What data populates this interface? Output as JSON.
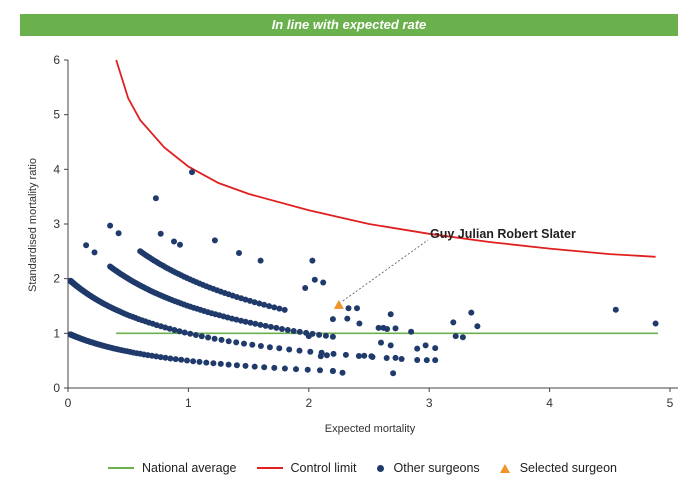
{
  "header": {
    "banner": "In line with expected rate"
  },
  "colors": {
    "banner": "#6ab04c",
    "national_average": "#6ab04c",
    "control_limit": "#e02020",
    "other_surgeons": "#1f3a6b",
    "selected_surgeon": "#f0932b"
  },
  "legend": {
    "national_average": "National average",
    "control_limit": "Control limit",
    "other_surgeons": "Other surgeons",
    "selected_surgeon": "Selected surgeon"
  },
  "chart_data": {
    "type": "scatter",
    "title": "",
    "xlabel": "Expected mortality",
    "ylabel": "Standardised mortality ratio",
    "xlim": [
      0,
      5
    ],
    "ylim": [
      0,
      6
    ],
    "x_ticks": [
      "0",
      "1",
      "2",
      "3",
      "4",
      "5"
    ],
    "y_ticks": [
      "0",
      "1",
      "2",
      "3",
      "4",
      "5",
      "6"
    ],
    "grid": false,
    "legend_position": "bottom",
    "national_average": {
      "name": "National average",
      "x": [
        0.4,
        4.9
      ],
      "y": 1
    },
    "control_limit": {
      "name": "Control limit",
      "x": [
        0.4,
        0.5,
        0.6,
        0.8,
        1.0,
        1.25,
        1.5,
        2.0,
        2.5,
        3.0,
        3.5,
        4.0,
        4.5,
        4.88
      ],
      "y": [
        6.0,
        5.3,
        4.9,
        4.4,
        4.05,
        3.75,
        3.55,
        3.25,
        3.0,
        2.82,
        2.67,
        2.55,
        2.45,
        2.4
      ]
    },
    "other_surgeons": {
      "name": "Other surgeons",
      "curves": [
        {
          "k": 1,
          "x_from": 0.02,
          "x_to": 2.2,
          "count": 95
        },
        {
          "k": 2,
          "x_from": 0.02,
          "x_to": 2.9,
          "count": 110
        },
        {
          "k": 3,
          "x_from": 0.35,
          "x_to": 2.2,
          "count": 70
        },
        {
          "k": 4,
          "x_from": 0.6,
          "x_to": 1.8,
          "count": 45
        }
      ],
      "points": [
        [
          1.03,
          3.95
        ],
        [
          0.73,
          3.47
        ],
        [
          0.35,
          2.97
        ],
        [
          0.42,
          2.83
        ],
        [
          0.77,
          2.82
        ],
        [
          1.22,
          2.7
        ],
        [
          0.88,
          2.68
        ],
        [
          0.93,
          2.62
        ],
        [
          1.42,
          2.47
        ],
        [
          1.6,
          2.33
        ],
        [
          2.03,
          2.33
        ],
        [
          0.15,
          2.61
        ],
        [
          0.22,
          2.48
        ],
        [
          2.05,
          1.98
        ],
        [
          2.12,
          1.93
        ],
        [
          1.97,
          1.83
        ],
        [
          2.33,
          1.46
        ],
        [
          2.4,
          1.46
        ],
        [
          2.32,
          1.27
        ],
        [
          2.2,
          1.26
        ],
        [
          2.68,
          1.35
        ],
        [
          2.62,
          1.1
        ],
        [
          2.65,
          1.08
        ],
        [
          2.72,
          1.09
        ],
        [
          2.85,
          1.03
        ],
        [
          2.42,
          1.18
        ],
        [
          2.58,
          1.1
        ],
        [
          2.6,
          0.83
        ],
        [
          2.68,
          0.78
        ],
        [
          2.72,
          0.55
        ],
        [
          2.9,
          0.72
        ],
        [
          2.97,
          0.78
        ],
        [
          3.05,
          0.73
        ],
        [
          2.98,
          0.51
        ],
        [
          3.05,
          0.51
        ],
        [
          3.2,
          1.2
        ],
        [
          3.35,
          1.38
        ],
        [
          3.4,
          1.13
        ],
        [
          3.22,
          0.95
        ],
        [
          3.28,
          0.93
        ],
        [
          4.55,
          1.43
        ],
        [
          4.88,
          1.18
        ],
        [
          2.7,
          0.27
        ],
        [
          2.28,
          0.28
        ],
        [
          2.2,
          0.31
        ],
        [
          2.46,
          0.59
        ],
        [
          2.52,
          0.58
        ],
        [
          2.1,
          0.58
        ],
        [
          2.0,
          0.95
        ],
        [
          2.15,
          0.6
        ]
      ]
    },
    "selected_surgeon": {
      "name": "Selected surgeon",
      "label": "Guy Julian Robert Slater",
      "x": 2.25,
      "y": 1.52
    }
  }
}
